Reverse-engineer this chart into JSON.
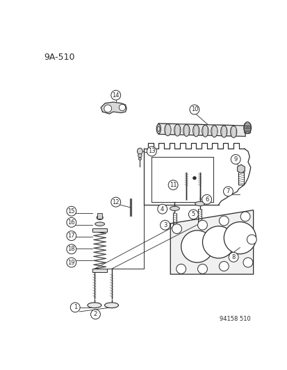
{
  "page_id": "9A-510",
  "bottom_id": "94158 510",
  "bg_color": "#ffffff",
  "line_color": "#2a2a2a",
  "fig_width": 4.14,
  "fig_height": 5.33,
  "dpi": 100
}
